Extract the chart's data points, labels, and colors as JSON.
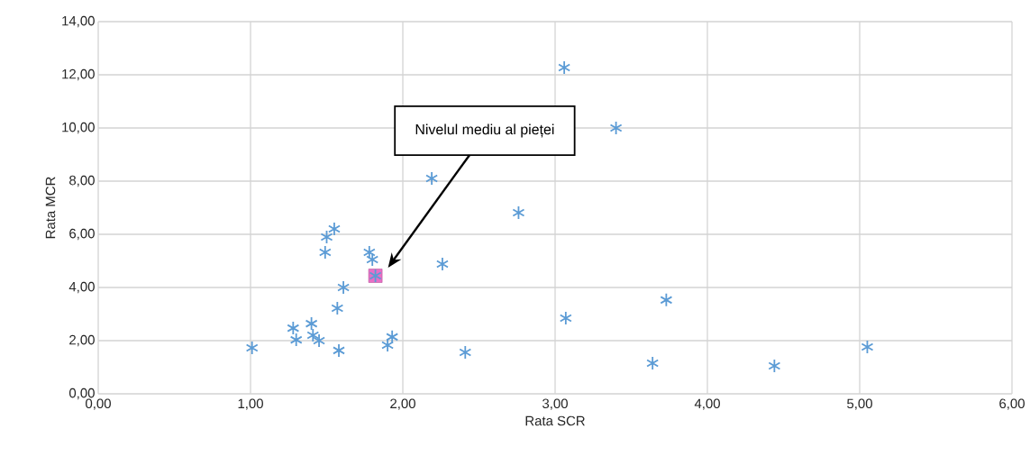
{
  "chart_data": {
    "type": "scatter",
    "xlabel": "Rata SCR",
    "ylabel": "Rata MCR",
    "grid": true,
    "xlim": [
      0,
      6
    ],
    "ylim": [
      0,
      14
    ],
    "xticks": [
      {
        "value": 0,
        "label": "0,00"
      },
      {
        "value": 1,
        "label": "1,00"
      },
      {
        "value": 2,
        "label": "2,00"
      },
      {
        "value": 3,
        "label": "3,00"
      },
      {
        "value": 4,
        "label": "4,00"
      },
      {
        "value": 5,
        "label": "5,00"
      },
      {
        "value": 6,
        "label": "6,00"
      }
    ],
    "yticks": [
      {
        "value": 0,
        "label": "0,00"
      },
      {
        "value": 2,
        "label": "2,00"
      },
      {
        "value": 4,
        "label": "4,00"
      },
      {
        "value": 6,
        "label": "6,00"
      },
      {
        "value": 8,
        "label": "8,00"
      },
      {
        "value": 10,
        "label": "10,00"
      },
      {
        "value": 12,
        "label": "12,00"
      },
      {
        "value": 14,
        "label": "14,00"
      }
    ],
    "series": [
      {
        "color": "#e86fc6",
        "marker": "square",
        "x": [
          1.82
        ],
        "values": [
          4.44
        ]
      },
      {
        "color": "#5b9bd5",
        "marker": "cross",
        "x": [
          1.01,
          1.28,
          1.3,
          1.4,
          1.41,
          1.45,
          1.5,
          1.49,
          1.55,
          1.57,
          1.58,
          1.61,
          1.78,
          1.8,
          1.82,
          1.9,
          1.93,
          2.19,
          2.26,
          2.41,
          2.76,
          3.06,
          3.07,
          3.4,
          3.64,
          3.73,
          4.44,
          5.05
        ],
        "values": [
          1.73,
          2.47,
          2.03,
          2.64,
          2.2,
          2.0,
          5.9,
          5.32,
          6.2,
          3.22,
          1.63,
          4.0,
          5.32,
          5.05,
          4.44,
          1.83,
          2.14,
          8.1,
          4.88,
          1.56,
          6.81,
          12.27,
          2.85,
          10.0,
          1.15,
          3.53,
          1.05,
          1.76
        ]
      }
    ],
    "annotations": [
      "Nivelul mediu al pieței"
    ]
  }
}
